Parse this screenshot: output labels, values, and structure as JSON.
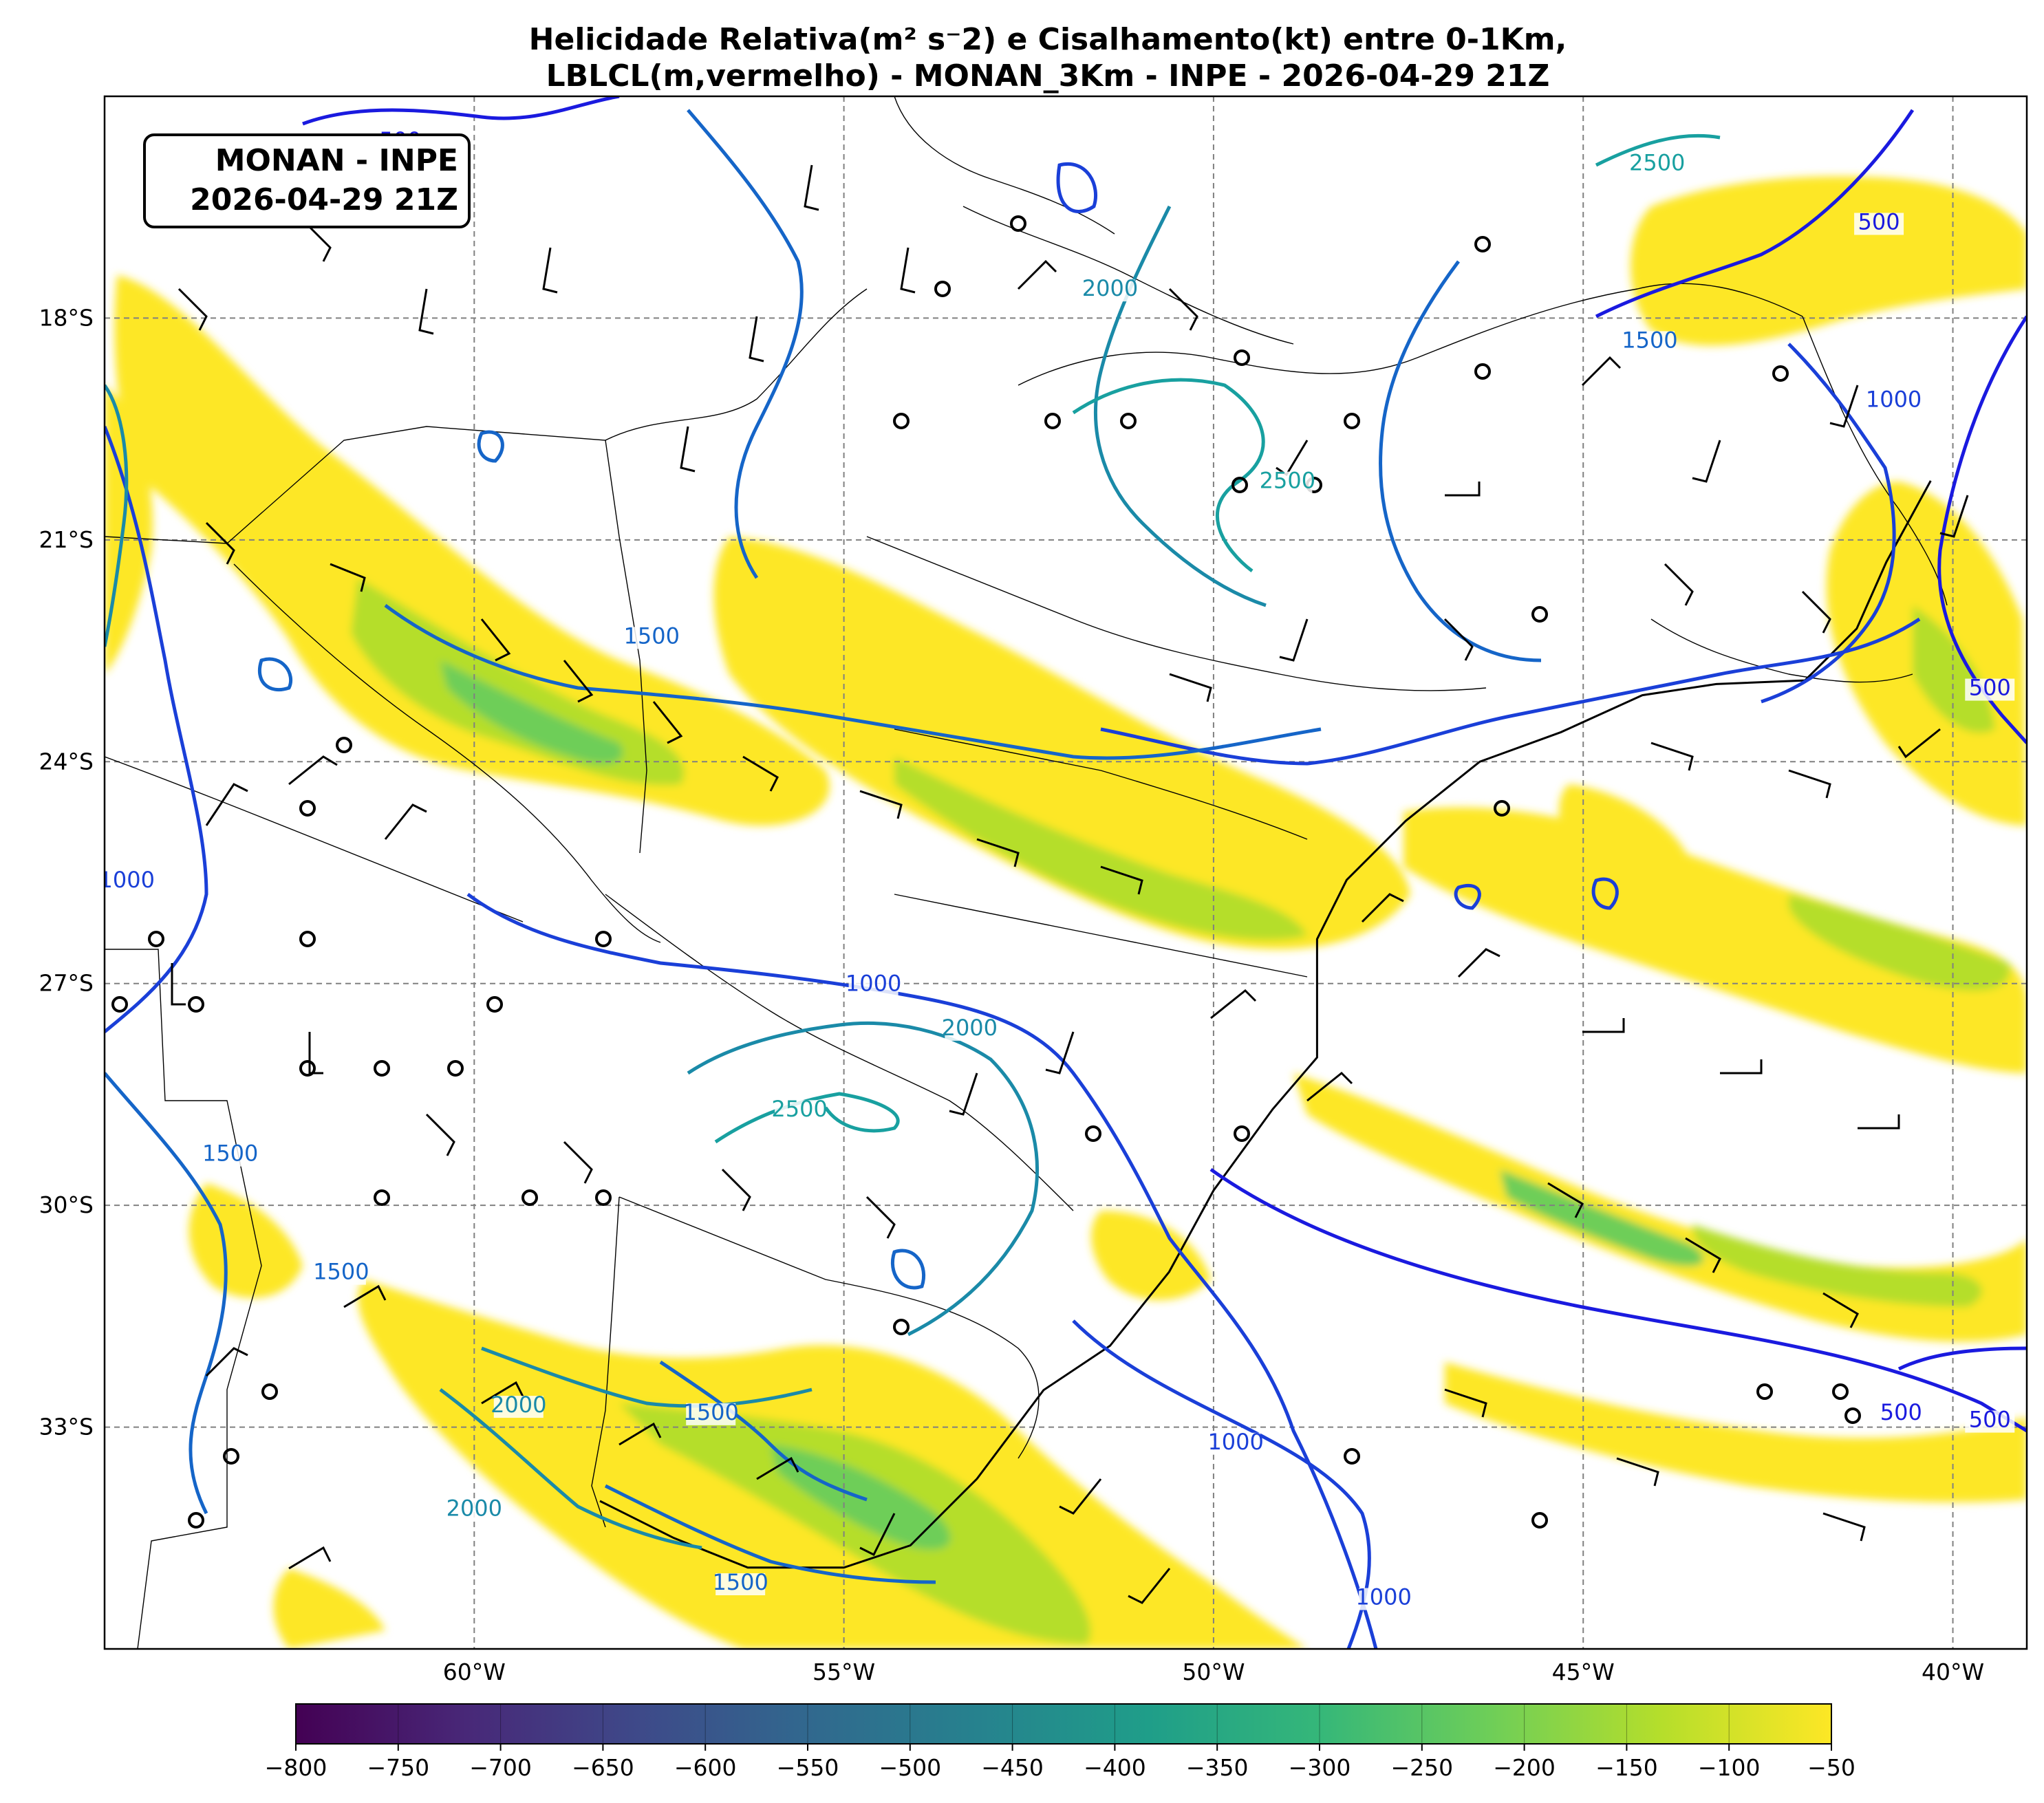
{
  "title": {
    "line1": "Helicidade Relativa(m² s⁻2) e Cisalhamento(kt) entre 0-1Km,",
    "line2": "LBLCL(m,vermelho) - MONAN_3Km - INPE - 2026-04-29 21Z"
  },
  "stamp": {
    "line1": "MONAN - INPE",
    "line2": "2026-04-29 21Z"
  },
  "map": {
    "lon_range": [
      -65,
      -39
    ],
    "lat_range": [
      -36,
      -15
    ],
    "lon_ticks": [
      {
        "lon": -60,
        "label": "60°W"
      },
      {
        "lon": -55,
        "label": "55°W"
      },
      {
        "lon": -50,
        "label": "50°W"
      },
      {
        "lon": -45,
        "label": "45°W"
      },
      {
        "lon": -40,
        "label": "40°W"
      }
    ],
    "lat_ticks": [
      {
        "lat": -18,
        "label": "18°S"
      },
      {
        "lat": -21,
        "label": "21°S"
      },
      {
        "lat": -24,
        "label": "24°S"
      },
      {
        "lat": -27,
        "label": "27°S"
      },
      {
        "lat": -30,
        "label": "30°S"
      },
      {
        "lat": -33,
        "label": "33°S"
      }
    ],
    "gridlines": true,
    "coastline": [
      [
        -40.3,
        -20.2
      ],
      [
        -40.9,
        -21.3
      ],
      [
        -41.3,
        -22.2
      ],
      [
        -42.0,
        -22.9
      ],
      [
        -43.2,
        -22.95
      ],
      [
        -44.2,
        -23.1
      ],
      [
        -45.3,
        -23.6
      ],
      [
        -46.4,
        -24.0
      ],
      [
        -47.4,
        -24.8
      ],
      [
        -48.2,
        -25.6
      ],
      [
        -48.6,
        -26.4
      ],
      [
        -48.6,
        -27.2
      ],
      [
        -48.6,
        -28.0
      ],
      [
        -49.2,
        -28.7
      ],
      [
        -50.0,
        -29.8
      ],
      [
        -50.6,
        -30.9
      ],
      [
        -51.4,
        -31.9
      ],
      [
        -52.3,
        -32.5
      ],
      [
        -53.2,
        -33.7
      ],
      [
        -54.1,
        -34.6
      ],
      [
        -55.0,
        -34.9
      ],
      [
        -56.3,
        -34.9
      ],
      [
        -57.3,
        -34.5
      ],
      [
        -58.3,
        -34.0
      ]
    ],
    "contour_labels": [
      {
        "lon": -61.0,
        "lat": -15.7,
        "text": "500",
        "color": "#1a1adf"
      },
      {
        "lon": -41.0,
        "lat": -16.8,
        "text": "500",
        "color": "#1a1adf"
      },
      {
        "lon": -39.5,
        "lat": -23.1,
        "text": "500",
        "color": "#1a1adf"
      },
      {
        "lon": -39.5,
        "lat": -33.0,
        "text": "500",
        "color": "#1a1adf"
      },
      {
        "lon": -40.7,
        "lat": -32.9,
        "text": "500",
        "color": "#1a1adf"
      },
      {
        "lon": -44.0,
        "lat": -16.0,
        "text": "2500",
        "color": "#18a0a0"
      },
      {
        "lon": -51.4,
        "lat": -17.7,
        "text": "2000",
        "color": "#1a8aa8"
      },
      {
        "lon": -49.0,
        "lat": -20.3,
        "text": "2500",
        "color": "#18a0a0"
      },
      {
        "lon": -44.1,
        "lat": -18.4,
        "text": "1500",
        "color": "#1565c8"
      },
      {
        "lon": -40.8,
        "lat": -19.2,
        "text": "1000",
        "color": "#1a3fd8"
      },
      {
        "lon": -57.6,
        "lat": -22.4,
        "text": "1500",
        "color": "#1565c8"
      },
      {
        "lon": -64.7,
        "lat": -25.7,
        "text": "1000",
        "color": "#1a3fd8"
      },
      {
        "lon": -54.6,
        "lat": -27.1,
        "text": "1000",
        "color": "#1a3fd8"
      },
      {
        "lon": -53.3,
        "lat": -27.7,
        "text": "2000",
        "color": "#1a8aa8"
      },
      {
        "lon": -55.6,
        "lat": -28.8,
        "text": "2500",
        "color": "#18a0a0"
      },
      {
        "lon": -63.3,
        "lat": -29.4,
        "text": "1500",
        "color": "#1565c8"
      },
      {
        "lon": -61.8,
        "lat": -31.0,
        "text": "1500",
        "color": "#1565c8"
      },
      {
        "lon": -59.4,
        "lat": -32.8,
        "text": "2000",
        "color": "#1a8aa8"
      },
      {
        "lon": -60.0,
        "lat": -34.2,
        "text": "2000",
        "color": "#1a8aa8"
      },
      {
        "lon": -56.8,
        "lat": -32.9,
        "text": "1500",
        "color": "#1565c8"
      },
      {
        "lon": -56.4,
        "lat": -35.2,
        "text": "1500",
        "color": "#1565c8"
      },
      {
        "lon": -49.7,
        "lat": -33.3,
        "text": "1000",
        "color": "#1a3fd8"
      },
      {
        "lon": -47.7,
        "lat": -35.4,
        "text": "1000",
        "color": "#1a3fd8"
      }
    ]
  },
  "colorbar": {
    "min": -800,
    "max": -50,
    "ticks": [
      "−800",
      "−750",
      "−700",
      "−650",
      "−600",
      "−550",
      "−500",
      "−450",
      "−400",
      "−350",
      "−300",
      "−250",
      "−200",
      "−150",
      "−100",
      "−50"
    ],
    "tick_values": [
      -800,
      -750,
      -700,
      -650,
      -600,
      -550,
      -500,
      -450,
      -400,
      -350,
      -300,
      -250,
      -200,
      -150,
      -100,
      -50
    ],
    "colormap": "viridis",
    "colors": [
      "#440154",
      "#482878",
      "#3e4989",
      "#31688e",
      "#26828e",
      "#1f9e89",
      "#35b779",
      "#6ece58",
      "#b5de2b",
      "#fde725"
    ]
  },
  "colors": {
    "shear_fill_light": "#fde725",
    "shear_fill_mid": "#b5de2b",
    "shear_fill_strong": "#6ece58",
    "contour_500": "#1a1adf",
    "contour_1000": "#1a3fd8",
    "contour_1500": "#1565c8",
    "contour_2000": "#1a8aa8",
    "contour_2500": "#18a0a0"
  }
}
